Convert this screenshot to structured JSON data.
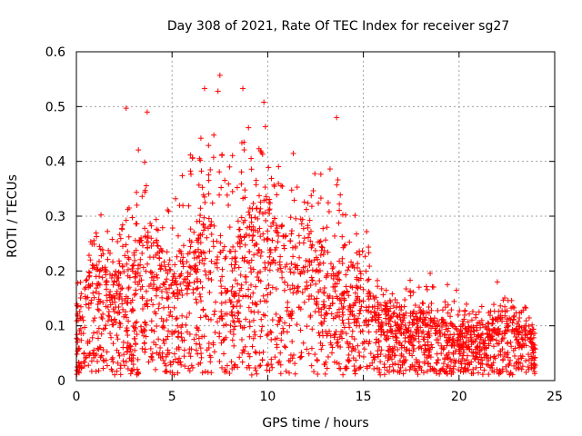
{
  "chart_data": {
    "type": "scatter",
    "title": "Day 308 of 2021, Rate Of TEC Index for receiver sg27",
    "xlabel": "GPS time / hours",
    "ylabel": "ROTI / TECUs",
    "xlim": [
      0,
      25
    ],
    "ylim": [
      0,
      0.6
    ],
    "x_ticks": [
      0,
      5,
      10,
      15,
      20,
      25
    ],
    "x_tick_labels": [
      "0",
      "5",
      "10",
      "15",
      "20",
      "25"
    ],
    "y_ticks": [
      0,
      0.1,
      0.2,
      0.3,
      0.4,
      0.5,
      0.6
    ],
    "y_tick_labels": [
      "0",
      "0.1",
      "0.2",
      "0.3",
      "0.4",
      "0.5",
      "0.6"
    ],
    "grid": true,
    "marker": "plus",
    "color": "#ff0000",
    "x_range_data": [
      0,
      24
    ],
    "envelope": {
      "hours": [
        0,
        0.5,
        1,
        2,
        3,
        3.5,
        4,
        5,
        5.5,
        6,
        6.5,
        7,
        7.5,
        8,
        8.5,
        9,
        9.5,
        10,
        10.5,
        11,
        11.5,
        12,
        12.5,
        13,
        13.5,
        14,
        14.5,
        15,
        15.5,
        16,
        17,
        18,
        19,
        20,
        21,
        22,
        22.5,
        23,
        23.5,
        24
      ],
      "typical": [
        0.08,
        0.12,
        0.14,
        0.13,
        0.15,
        0.18,
        0.17,
        0.14,
        0.16,
        0.18,
        0.2,
        0.19,
        0.18,
        0.15,
        0.17,
        0.2,
        0.22,
        0.21,
        0.19,
        0.18,
        0.2,
        0.19,
        0.17,
        0.15,
        0.13,
        0.12,
        0.12,
        0.13,
        0.1,
        0.09,
        0.08,
        0.08,
        0.07,
        0.06,
        0.06,
        0.07,
        0.08,
        0.07,
        0.06,
        0.05
      ],
      "upper": [
        0.17,
        0.25,
        0.32,
        0.3,
        0.38,
        0.49,
        0.4,
        0.36,
        0.42,
        0.48,
        0.53,
        0.5,
        0.56,
        0.45,
        0.53,
        0.5,
        0.51,
        0.45,
        0.46,
        0.41,
        0.46,
        0.4,
        0.42,
        0.44,
        0.48,
        0.36,
        0.3,
        0.34,
        0.23,
        0.19,
        0.18,
        0.21,
        0.2,
        0.16,
        0.14,
        0.14,
        0.18,
        0.16,
        0.15,
        0.1
      ]
    },
    "notable_points": [
      {
        "x": 2.6,
        "y": 0.497
      },
      {
        "x": 3.7,
        "y": 0.49
      },
      {
        "x": 6.7,
        "y": 0.533
      },
      {
        "x": 7.4,
        "y": 0.528
      },
      {
        "x": 7.5,
        "y": 0.557
      },
      {
        "x": 8.7,
        "y": 0.533
      },
      {
        "x": 9.8,
        "y": 0.508
      },
      {
        "x": 13.6,
        "y": 0.48
      },
      {
        "x": 22.0,
        "y": 0.18
      }
    ]
  }
}
